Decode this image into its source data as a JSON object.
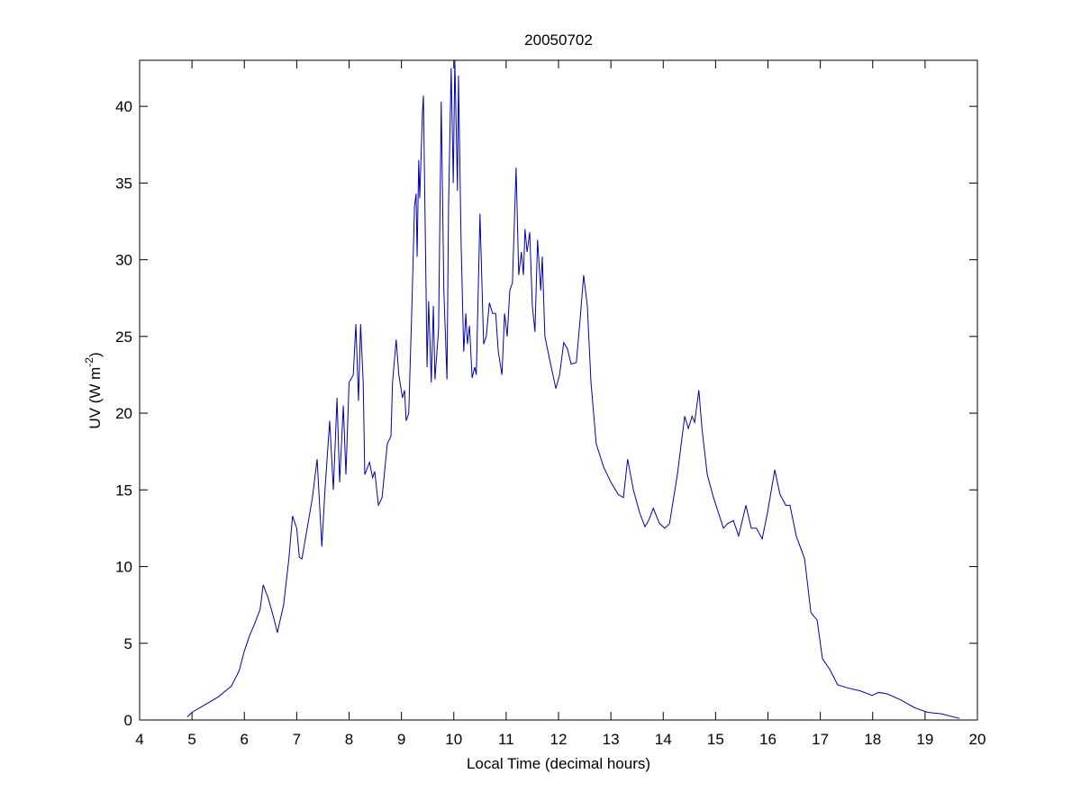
{
  "chart_data": {
    "type": "line",
    "title": "20050702",
    "xlabel": "Local Time (decimal hours)",
    "ylabel": [
      "UV (W m",
      "-2",
      ")"
    ],
    "xlim": [
      4,
      20
    ],
    "xticks": [
      4,
      5,
      6,
      7,
      8,
      9,
      10,
      11,
      12,
      13,
      14,
      15,
      16,
      17,
      18,
      19,
      20
    ],
    "ylim": [
      0,
      43
    ],
    "yticks": [
      0,
      5,
      10,
      15,
      20,
      25,
      30,
      35,
      40
    ],
    "series": [
      {
        "color": "#0000b0",
        "x": [
          4.91,
          5.0,
          5.2,
          5.5,
          5.75,
          5.9,
          6.0,
          6.1,
          6.2,
          6.3,
          6.36,
          6.45,
          6.55,
          6.63,
          6.75,
          6.85,
          6.92,
          7.0,
          7.05,
          7.1,
          7.2,
          7.3,
          7.39,
          7.48,
          7.54,
          7.63,
          7.7,
          7.77,
          7.82,
          7.89,
          7.94,
          8.0,
          8.08,
          8.13,
          8.18,
          8.22,
          8.27,
          8.3,
          8.39,
          8.45,
          8.49,
          8.56,
          8.63,
          8.73,
          8.8,
          8.83,
          8.9,
          8.95,
          9.02,
          9.06,
          9.09,
          9.14,
          9.2,
          9.25,
          9.28,
          9.3,
          9.33,
          9.35,
          9.4,
          9.42,
          9.49,
          9.52,
          9.57,
          9.61,
          9.64,
          9.71,
          9.76,
          9.81,
          9.87,
          9.9,
          9.95,
          9.99,
          10.02,
          10.07,
          10.09,
          10.14,
          10.19,
          10.23,
          10.26,
          10.3,
          10.35,
          10.4,
          10.43,
          10.5,
          10.57,
          10.62,
          10.68,
          10.74,
          10.8,
          10.85,
          10.92,
          10.97,
          11.02,
          11.07,
          11.12,
          11.19,
          11.24,
          11.29,
          11.33,
          11.36,
          11.4,
          11.45,
          11.5,
          11.55,
          11.6,
          11.66,
          11.69,
          11.74,
          11.83,
          11.95,
          12.02,
          12.1,
          12.17,
          12.24,
          12.34,
          12.41,
          12.48,
          12.55,
          12.62,
          12.72,
          12.86,
          13.0,
          13.14,
          13.24,
          13.32,
          13.43,
          13.55,
          13.65,
          13.72,
          13.81,
          13.93,
          14.03,
          14.12,
          14.27,
          14.41,
          14.48,
          14.55,
          14.6,
          14.68,
          14.74,
          14.84,
          14.96,
          15.15,
          15.23,
          15.34,
          15.44,
          15.58,
          15.68,
          15.78,
          15.89,
          15.99,
          16.13,
          16.23,
          16.34,
          16.42,
          16.54,
          16.7,
          16.82,
          16.94,
          17.04,
          17.18,
          17.33,
          17.51,
          17.76,
          17.99,
          18.11,
          18.28,
          18.54,
          18.8,
          19.05,
          19.31,
          19.66
        ],
        "values": [
          0.2,
          0.5,
          0.9,
          1.5,
          2.2,
          3.2,
          4.5,
          5.5,
          6.3,
          7.2,
          8.8,
          8.0,
          6.8,
          5.7,
          7.5,
          10.5,
          13.3,
          12.5,
          10.6,
          10.5,
          12.5,
          14.5,
          17,
          11.3,
          15,
          19.5,
          15,
          21,
          15.5,
          20.5,
          16,
          22,
          22.5,
          25.8,
          20.8,
          25.8,
          22,
          16,
          16.8,
          15.8,
          16.2,
          14,
          14.5,
          18,
          18.5,
          22,
          24.8,
          22.5,
          21,
          21.5,
          19.5,
          20,
          27,
          33.5,
          34.3,
          30.2,
          36.5,
          34,
          39.5,
          40.7,
          23,
          27.3,
          22,
          27,
          22.2,
          25.5,
          40.3,
          28,
          22.2,
          33.5,
          42.5,
          35,
          43,
          34.5,
          42,
          31,
          24,
          26.5,
          24.5,
          25.7,
          22.3,
          23,
          22.5,
          33,
          24.5,
          25,
          27.2,
          26.5,
          26.5,
          24,
          22.5,
          26.5,
          25,
          28,
          28.5,
          36,
          29,
          30.5,
          29,
          32,
          30.5,
          31.8,
          27,
          25.3,
          31.3,
          28,
          30.2,
          25,
          23.5,
          21.6,
          22.5,
          24.6,
          24.2,
          23.2,
          23.3,
          26,
          29,
          27,
          22,
          18,
          16.5,
          15.5,
          14.7,
          14.5,
          17,
          15,
          13.5,
          12.6,
          13,
          13.8,
          12.8,
          12.5,
          12.8,
          16,
          19.8,
          19,
          19.8,
          19.4,
          21.5,
          19,
          16,
          14.5,
          12.5,
          12.8,
          13,
          12,
          14,
          12.5,
          12.5,
          11.8,
          13.5,
          16.3,
          14.7,
          14,
          14,
          12,
          10.5,
          7,
          6.5,
          4,
          3.3,
          2.3,
          2.1,
          1.9,
          1.6,
          1.8,
          1.7,
          1.3,
          0.8,
          0.5,
          0.4,
          0.1
        ]
      }
    ]
  }
}
